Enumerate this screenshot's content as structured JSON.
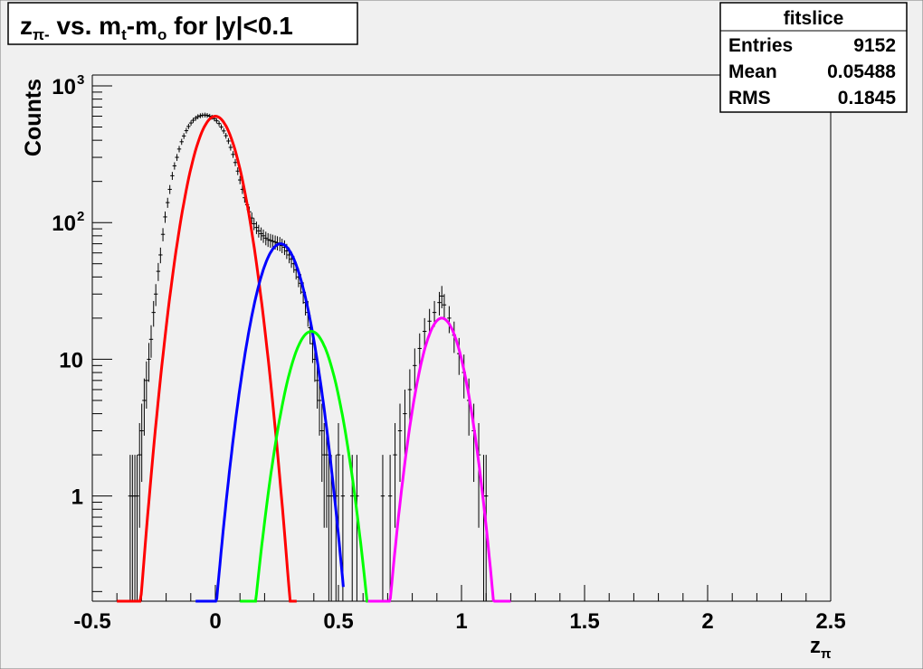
{
  "chart_data": {
    "type": "histogram",
    "title_main": "z",
    "title_sub": "π-",
    "title_mid1": " vs. m",
    "title_t": "t",
    "title_mid2": "-m",
    "title_o": "o",
    "title_tail": " for |y|<0.1",
    "xlabel_main": "z",
    "xlabel_sub": "π",
    "ylabel": "Counts",
    "xlim": [
      -0.5,
      2.5
    ],
    "y_log": true,
    "ylim": [
      0.17,
      1200
    ],
    "x_ticks": [
      {
        "value": -0.5,
        "label": "-0.5"
      },
      {
        "value": 0,
        "label": "0"
      },
      {
        "value": 0.5,
        "label": "0.5"
      },
      {
        "value": 1,
        "label": "1"
      },
      {
        "value": 1.5,
        "label": "1.5"
      },
      {
        "value": 2,
        "label": "2"
      },
      {
        "value": 2.5,
        "label": "2.5"
      }
    ],
    "y_ticks": [
      {
        "value": 1,
        "label": "1"
      },
      {
        "value": 10,
        "label": "10"
      },
      {
        "value": 100,
        "label": "10",
        "exp": "2"
      },
      {
        "value": 1000,
        "label": "10",
        "exp": "3"
      }
    ],
    "stats": {
      "title": "fitslice",
      "rows": [
        {
          "label": "Entries",
          "value": "9152"
        },
        {
          "label": "Mean",
          "value": "0.05488"
        },
        {
          "label": "RMS",
          "value": "0.1845"
        }
      ]
    },
    "histogram": {
      "color": "#000000",
      "points": [
        [
          -0.346,
          1
        ],
        [
          -0.337,
          1
        ],
        [
          -0.327,
          1
        ],
        [
          -0.318,
          1
        ],
        [
          -0.308,
          2
        ],
        [
          -0.299,
          3
        ],
        [
          -0.289,
          5
        ],
        [
          -0.28,
          7
        ],
        [
          -0.27,
          10
        ],
        [
          -0.261,
          14
        ],
        [
          -0.251,
          22
        ],
        [
          -0.242,
          30
        ],
        [
          -0.232,
          44
        ],
        [
          -0.223,
          58
        ],
        [
          -0.213,
          82
        ],
        [
          -0.204,
          110
        ],
        [
          -0.194,
          140
        ],
        [
          -0.185,
          175
        ],
        [
          -0.175,
          220
        ],
        [
          -0.166,
          260
        ],
        [
          -0.156,
          300
        ],
        [
          -0.147,
          345
        ],
        [
          -0.137,
          390
        ],
        [
          -0.128,
          430
        ],
        [
          -0.118,
          470
        ],
        [
          -0.109,
          505
        ],
        [
          -0.099,
          535
        ],
        [
          -0.09,
          560
        ],
        [
          -0.08,
          580
        ],
        [
          -0.071,
          595
        ],
        [
          -0.061,
          605
        ],
        [
          -0.052,
          610
        ],
        [
          -0.042,
          612
        ],
        [
          -0.033,
          608
        ],
        [
          -0.023,
          600
        ],
        [
          -0.014,
          590
        ],
        [
          -0.004,
          575
        ],
        [
          0.005,
          555
        ],
        [
          0.015,
          530
        ],
        [
          0.024,
          500
        ],
        [
          0.034,
          468
        ],
        [
          0.043,
          432
        ],
        [
          0.053,
          395
        ],
        [
          0.062,
          355
        ],
        [
          0.072,
          315
        ],
        [
          0.081,
          275
        ],
        [
          0.091,
          238
        ],
        [
          0.1,
          205
        ],
        [
          0.11,
          175
        ],
        [
          0.119,
          152
        ],
        [
          0.129,
          135
        ],
        [
          0.138,
          120
        ],
        [
          0.148,
          108
        ],
        [
          0.157,
          98
        ],
        [
          0.167,
          92
        ],
        [
          0.176,
          87
        ],
        [
          0.186,
          83
        ],
        [
          0.195,
          80
        ],
        [
          0.205,
          77
        ],
        [
          0.214,
          75
        ],
        [
          0.224,
          74
        ],
        [
          0.233,
          73
        ],
        [
          0.243,
          72
        ],
        [
          0.252,
          71
        ],
        [
          0.262,
          70
        ],
        [
          0.271,
          68
        ],
        [
          0.281,
          66
        ],
        [
          0.29,
          62
        ],
        [
          0.3,
          58
        ],
        [
          0.309,
          54
        ],
        [
          0.319,
          50
        ],
        [
          0.328,
          45
        ],
        [
          0.338,
          40
        ],
        [
          0.347,
          36
        ],
        [
          0.357,
          31
        ],
        [
          0.366,
          26
        ],
        [
          0.376,
          22
        ],
        [
          0.385,
          17
        ],
        [
          0.395,
          13
        ],
        [
          0.404,
          10
        ],
        [
          0.414,
          7
        ],
        [
          0.423,
          5
        ],
        [
          0.433,
          3
        ],
        [
          0.442,
          2
        ],
        [
          0.452,
          2
        ],
        [
          0.461,
          1
        ],
        [
          0.471,
          1
        ],
        [
          0.49,
          1
        ],
        [
          0.5,
          2
        ],
        [
          0.518,
          1
        ],
        [
          0.556,
          1
        ],
        [
          0.575,
          1
        ],
        [
          0.68,
          1
        ],
        [
          0.71,
          1
        ],
        [
          0.73,
          2
        ],
        [
          0.75,
          3
        ],
        [
          0.77,
          4
        ],
        [
          0.79,
          6
        ],
        [
          0.81,
          9
        ],
        [
          0.83,
          12
        ],
        [
          0.85,
          16
        ],
        [
          0.87,
          19
        ],
        [
          0.89,
          22
        ],
        [
          0.91,
          26
        ],
        [
          0.92,
          29
        ],
        [
          0.93,
          25
        ],
        [
          0.95,
          20
        ],
        [
          0.97,
          15
        ],
        [
          0.99,
          11
        ],
        [
          1.01,
          8
        ],
        [
          1.03,
          5
        ],
        [
          1.05,
          3
        ],
        [
          1.07,
          2
        ],
        [
          1.09,
          1
        ],
        [
          1.1,
          1
        ]
      ]
    },
    "fits": [
      {
        "name": "red",
        "color": "#ff0000",
        "amp": 600,
        "mean": 0.0,
        "sigma": 0.075,
        "xmin": -0.4,
        "xmax": 0.33
      },
      {
        "name": "blue",
        "color": "#0000ff",
        "amp": 70,
        "mean": 0.265,
        "sigma": 0.075,
        "xmin": -0.08,
        "xmax": 0.52
      },
      {
        "name": "green",
        "color": "#00ff00",
        "amp": 16,
        "mean": 0.39,
        "sigma": 0.075,
        "xmin": 0.1,
        "xmax": 0.62
      },
      {
        "name": "magenta",
        "color": "#ff00ff",
        "amp": 20,
        "mean": 0.92,
        "sigma": 0.068,
        "xmin": 0.62,
        "xmax": 1.2
      }
    ]
  }
}
